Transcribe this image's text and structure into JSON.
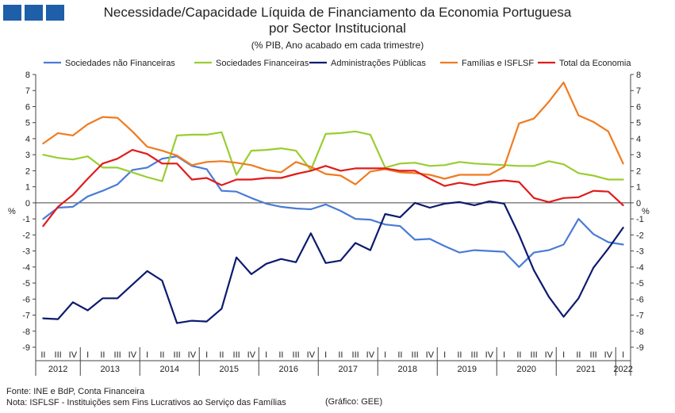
{
  "header": {
    "title_line1": "Necessidade/Capacidade Líquida de Financiamento da Economia Portuguesa",
    "title_line2": "por Sector Institucional",
    "subtitle": "(% PIB, Ano acabado em cada trimestre)"
  },
  "footer": {
    "source": "Fonte: INE e  BdP, Conta Financeira",
    "note": "Nota: ISFLSF - Instituições sem Fins Lucrativos ao Serviço das Famílias",
    "credit": "(Gráfico: GEE)"
  },
  "colors": {
    "brand": "#1f5ea8"
  },
  "chart_data": {
    "type": "line",
    "ylim": [
      -9,
      8
    ],
    "yticks": [
      8,
      7,
      6,
      5,
      4,
      3,
      2,
      1,
      0,
      -1,
      -2,
      -3,
      -4,
      -5,
      -6,
      -7,
      -8,
      -9
    ],
    "ylabel_left": "%",
    "ylabel_right": "%",
    "quarter_labels": [
      "II",
      "III",
      "IV",
      "I",
      "II",
      "III",
      "IV",
      "I",
      "II",
      "III",
      "IV",
      "I",
      "II",
      "III",
      "IV",
      "I",
      "II",
      "III",
      "IV",
      "I",
      "II",
      "III",
      "IV",
      "I",
      "II",
      "III",
      "IV",
      "I",
      "II",
      "III",
      "IV",
      "I",
      "II",
      "III",
      "IV",
      "I",
      "II",
      "III",
      "IV",
      "I"
    ],
    "years": [
      {
        "label": "2012",
        "start": 0,
        "count": 3
      },
      {
        "label": "2013",
        "start": 3,
        "count": 4
      },
      {
        "label": "2014",
        "start": 7,
        "count": 4
      },
      {
        "label": "2015",
        "start": 11,
        "count": 4
      },
      {
        "label": "2016",
        "start": 15,
        "count": 4
      },
      {
        "label": "2017",
        "start": 19,
        "count": 4
      },
      {
        "label": "2018",
        "start": 23,
        "count": 4
      },
      {
        "label": "2019",
        "start": 27,
        "count": 4
      },
      {
        "label": "2020",
        "start": 31,
        "count": 4
      },
      {
        "label": "2021",
        "start": 35,
        "count": 4
      },
      {
        "label": "2022",
        "start": 39,
        "count": 1
      }
    ],
    "grid": false,
    "legend_position": "top",
    "series": [
      {
        "name": "Sociedades não Financeiras",
        "color": "#4a7bd6",
        "values": [
          -1.0,
          -0.3,
          -0.25,
          0.4,
          0.75,
          1.15,
          2.05,
          2.2,
          2.75,
          2.9,
          2.3,
          2.1,
          0.75,
          0.7,
          0.3,
          -0.05,
          -0.25,
          -0.35,
          -0.4,
          -0.1,
          -0.5,
          -1.0,
          -1.05,
          -1.35,
          -1.45,
          -2.3,
          -2.25,
          -2.7,
          -3.1,
          -2.95,
          -3.0,
          -3.05,
          -4.0,
          -3.1,
          -2.95,
          -2.6,
          -1.0,
          -1.95,
          -2.45,
          -2.6
        ]
      },
      {
        "name": "Sociedades Financeiras",
        "color": "#9acd32",
        "values": [
          3.0,
          2.8,
          2.7,
          2.9,
          2.2,
          2.2,
          1.9,
          1.6,
          1.35,
          4.2,
          4.25,
          4.25,
          4.4,
          1.75,
          3.25,
          3.3,
          3.4,
          3.25,
          2.05,
          4.3,
          4.35,
          4.45,
          4.25,
          2.2,
          2.45,
          2.5,
          2.3,
          2.35,
          2.55,
          2.45,
          2.4,
          2.35,
          2.3,
          2.3,
          2.6,
          2.4,
          1.85,
          1.7,
          1.45,
          1.45
        ]
      },
      {
        "name": "Administrações Públicas",
        "color": "#0d1b6e",
        "values": [
          -7.2,
          -7.25,
          -6.2,
          -6.7,
          -5.95,
          -5.95,
          -5.1,
          -4.25,
          -4.85,
          -7.5,
          -7.35,
          -7.4,
          -6.6,
          -3.4,
          -4.45,
          -3.8,
          -3.5,
          -3.7,
          -1.9,
          -3.75,
          -3.6,
          -2.5,
          -2.95,
          -0.7,
          -0.9,
          0.0,
          -0.3,
          -0.05,
          0.05,
          -0.15,
          0.1,
          -0.05,
          -2.0,
          -4.2,
          -5.85,
          -7.1,
          -5.95,
          -4.05,
          -2.85,
          -1.55
        ]
      },
      {
        "name": "Famílias e ISFLSF",
        "color": "#f07b20",
        "values": [
          3.7,
          4.35,
          4.2,
          4.9,
          5.35,
          5.3,
          4.45,
          3.5,
          3.25,
          2.95,
          2.35,
          2.55,
          2.6,
          2.5,
          2.35,
          2.05,
          1.9,
          2.55,
          2.25,
          1.8,
          1.7,
          1.15,
          1.95,
          2.1,
          1.9,
          1.85,
          1.75,
          1.5,
          1.75,
          1.75,
          1.75,
          2.25,
          4.95,
          5.25,
          6.3,
          7.5,
          5.45,
          5.05,
          4.45,
          2.45
        ]
      },
      {
        "name": "Total da Economia",
        "color": "#e01b1b",
        "values": [
          -1.45,
          -0.25,
          0.5,
          1.5,
          2.45,
          2.75,
          3.3,
          3.05,
          2.45,
          2.45,
          1.45,
          1.55,
          1.1,
          1.45,
          1.45,
          1.55,
          1.55,
          1.8,
          2.0,
          2.3,
          2.0,
          2.15,
          2.15,
          2.15,
          2.0,
          2.0,
          1.5,
          1.05,
          1.25,
          1.1,
          1.3,
          1.4,
          1.3,
          0.3,
          0.05,
          0.3,
          0.35,
          0.75,
          0.7,
          -0.15
        ]
      }
    ]
  }
}
